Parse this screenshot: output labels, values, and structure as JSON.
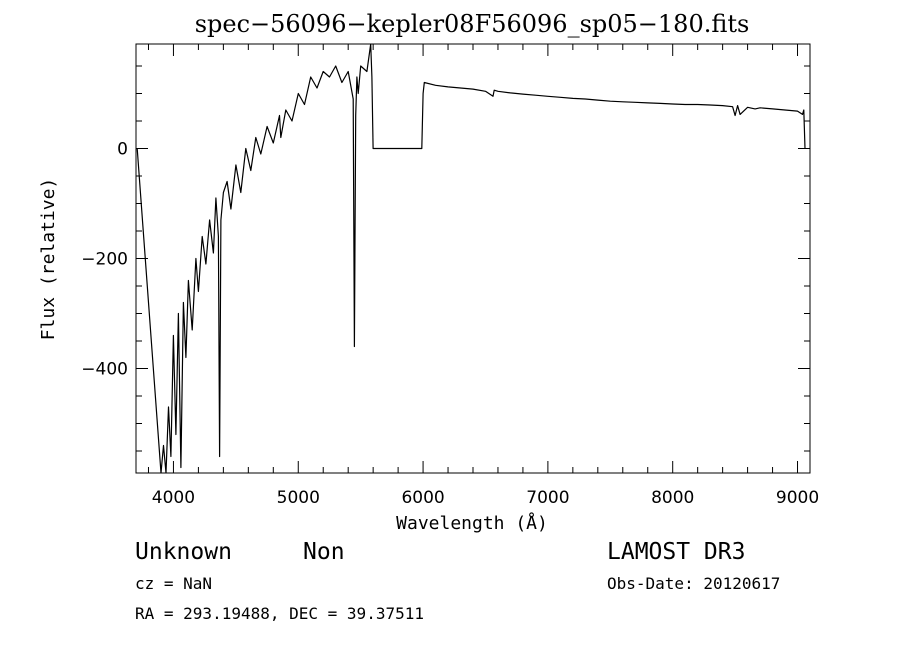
{
  "chart_data": {
    "type": "line",
    "title": "spec−56096−kepler08F56096_sp05−180.fits",
    "xlabel": "Wavelength (Å)",
    "ylabel": "Flux (relative)",
    "xlim": [
      3700,
      9100
    ],
    "ylim": [
      -590,
      190
    ],
    "x_ticks": [
      4000,
      5000,
      6000,
      7000,
      8000,
      9000
    ],
    "x_tick_labels": [
      "4000",
      "5000",
      "6000",
      "7000",
      "8000",
      "9000"
    ],
    "y_ticks": [
      0,
      -200,
      -400
    ],
    "y_tick_labels": [
      "0",
      "−200",
      "−400"
    ],
    "grid": false,
    "series": [
      {
        "name": "flux",
        "x": [
          3710,
          3900,
          3920,
          3940,
          3960,
          3980,
          4000,
          4020,
          4040,
          4060,
          4080,
          4100,
          4120,
          4150,
          4180,
          4200,
          4230,
          4260,
          4290,
          4320,
          4340,
          4360,
          4370,
          4380,
          4400,
          4430,
          4460,
          4500,
          4540,
          4580,
          4620,
          4660,
          4700,
          4750,
          4800,
          4850,
          4860,
          4900,
          4950,
          5000,
          5050,
          5100,
          5150,
          5200,
          5250,
          5300,
          5350,
          5400,
          5440,
          5450,
          5460,
          5470,
          5480,
          5500,
          5550,
          5580,
          5590,
          5600,
          5990,
          6000,
          6010,
          6100,
          6200,
          6300,
          6400,
          6500,
          6560,
          6570,
          6600,
          6700,
          6800,
          6900,
          7000,
          7100,
          7200,
          7300,
          7400,
          7500,
          7600,
          7700,
          7800,
          7900,
          8000,
          8100,
          8200,
          8300,
          8400,
          8480,
          8500,
          8520,
          8540,
          8600,
          8660,
          8700,
          8800,
          8900,
          9000,
          9040,
          9050,
          9060
        ],
        "y": [
          0,
          -590,
          -540,
          -590,
          -470,
          -560,
          -340,
          -520,
          -300,
          -580,
          -280,
          -380,
          -240,
          -330,
          -200,
          -260,
          -160,
          -210,
          -130,
          -190,
          -90,
          -160,
          -560,
          -130,
          -80,
          -60,
          -110,
          -30,
          -80,
          0,
          -40,
          20,
          -10,
          40,
          10,
          60,
          20,
          70,
          50,
          100,
          80,
          130,
          110,
          140,
          130,
          150,
          120,
          140,
          90,
          -360,
          60,
          130,
          100,
          150,
          140,
          190,
          130,
          0,
          0,
          100,
          120,
          115,
          112,
          110,
          108,
          104,
          95,
          106,
          104,
          101,
          99,
          97,
          95,
          93,
          91,
          90,
          88,
          86,
          85,
          84,
          83,
          82,
          81,
          80,
          80,
          79,
          78,
          76,
          60,
          78,
          62,
          75,
          72,
          74,
          72,
          70,
          68,
          62,
          70,
          0
        ]
      }
    ]
  },
  "footer": {
    "object_class": "Unknown",
    "object_subclass": "Non",
    "cz": "cz = NaN",
    "coords": "RA = 293.19488, DEC =  39.37511",
    "survey": "LAMOST DR3",
    "obs_date": "Obs-Date: 20120617"
  }
}
